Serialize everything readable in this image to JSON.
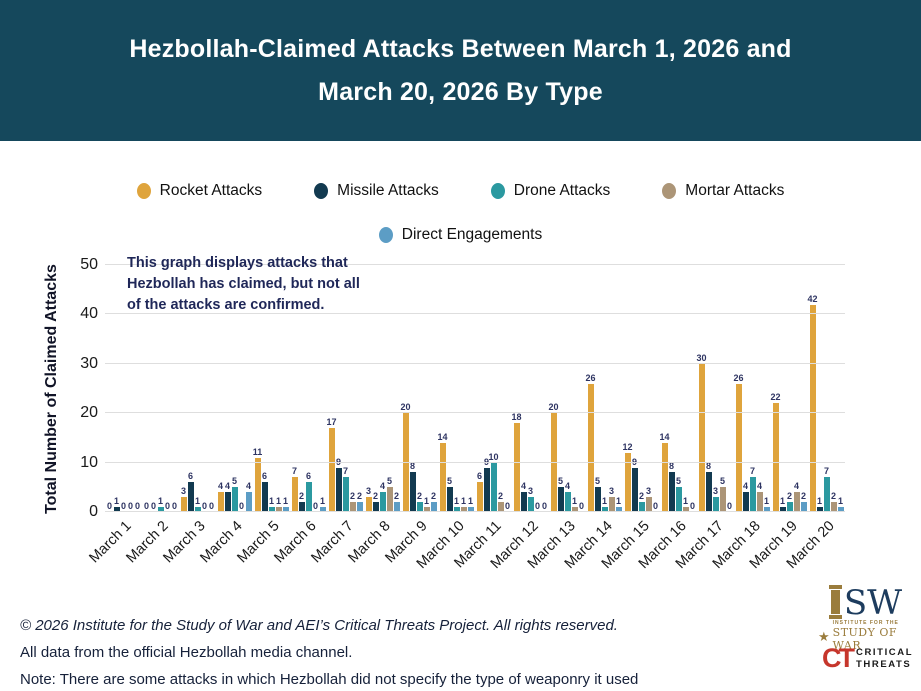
{
  "title": {
    "line1": "Hezbollah-Claimed Attacks Between March 1, 2026 and",
    "line2": "March 20, 2026 By Type"
  },
  "legend": {
    "row1": [
      {
        "label": "Rocket Attacks",
        "color": "#DFA43C"
      },
      {
        "label": "Missile Attacks",
        "color": "#123A50"
      },
      {
        "label": "Drone Attacks",
        "color": "#2B99A0"
      },
      {
        "label": "Mortar Attacks",
        "color": "#AC9577"
      }
    ],
    "row2": [
      {
        "label": "Direct Engagements",
        "color": "#5C9DC5"
      }
    ]
  },
  "annotation": "This graph displays attacks that\nHezbollah has claimed, but not all\nof the attacks are confirmed.",
  "y_axis": {
    "label": "Total Number of Claimed Attacks",
    "ticks": [
      0,
      10,
      20,
      30,
      40,
      50
    ]
  },
  "chart_data": {
    "type": "bar",
    "title": "Hezbollah-Claimed Attacks Between March 1, 2026 and March 20, 2026 By Type",
    "xlabel": "",
    "ylabel": "Total Number of Claimed Attacks",
    "ylim": [
      0,
      50
    ],
    "grid": true,
    "legend_position": "top",
    "categories": [
      "March 1",
      "March 2",
      "March 3",
      "March 4",
      "March 5",
      "March 6",
      "March 7",
      "March 8",
      "March 9",
      "March 10",
      "March 11",
      "March 12",
      "March 13",
      "March 14",
      "March 15",
      "March 16",
      "March 17",
      "March 18",
      "March 19",
      "March 20"
    ],
    "series": [
      {
        "name": "Rocket Attacks",
        "color": "#DFA43C",
        "values": [
          0,
          0,
          3,
          4,
          11,
          7,
          17,
          3,
          20,
          14,
          6,
          18,
          20,
          26,
          12,
          14,
          30,
          26,
          22,
          42
        ]
      },
      {
        "name": "Missile Attacks",
        "color": "#123A50",
        "values": [
          1,
          0,
          6,
          4,
          6,
          2,
          9,
          2,
          8,
          5,
          9,
          4,
          5,
          5,
          9,
          8,
          8,
          4,
          1,
          1
        ]
      },
      {
        "name": "Drone Attacks",
        "color": "#2B99A0",
        "values": [
          0,
          1,
          1,
          5,
          1,
          6,
          7,
          4,
          2,
          1,
          10,
          3,
          4,
          1,
          2,
          5,
          3,
          7,
          2,
          7
        ]
      },
      {
        "name": "Mortar Attacks",
        "color": "#AC9577",
        "values": [
          0,
          0,
          0,
          0,
          1,
          0,
          2,
          5,
          1,
          1,
          2,
          0,
          1,
          3,
          3,
          1,
          5,
          4,
          4,
          2
        ]
      },
      {
        "name": "Direct Engagements",
        "color": "#5C9DC5",
        "values": [
          0,
          0,
          0,
          4,
          1,
          1,
          2,
          2,
          2,
          1,
          0,
          0,
          0,
          1,
          0,
          0,
          0,
          1,
          2,
          1
        ]
      }
    ]
  },
  "footer": {
    "line1": "© 2026 Institute for the Study of War and AEI’s Critical Threats Project. All rights reserved.",
    "line2": "All data from the official Hezbollah media channel.",
    "line3": "Note: There are some attacks in which Hezbollah did not specify the type of weaponry it used"
  },
  "logos": {
    "isw": {
      "sw": "SW",
      "sub1": "INSTITUTE FOR THE",
      "sub2": "STUDY OF WAR"
    },
    "ct": {
      "mark": "CT",
      "word1": "CRITICAL",
      "word2": "THREATS"
    }
  }
}
